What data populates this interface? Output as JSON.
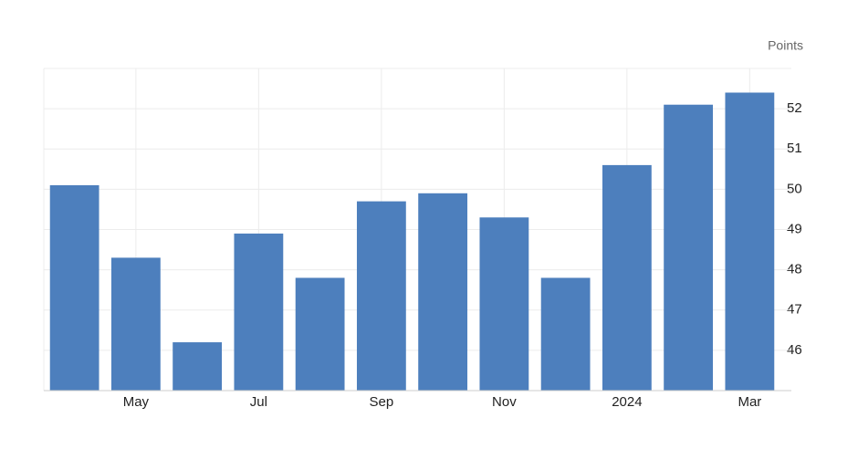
{
  "chart_data": {
    "type": "bar",
    "y_label": "Points",
    "categories": [
      null,
      "May",
      null,
      "Jul",
      null,
      "Sep",
      null,
      "Nov",
      null,
      "2024",
      null,
      "Mar"
    ],
    "values": [
      50.1,
      48.3,
      46.2,
      48.9,
      47.8,
      49.7,
      49.9,
      49.3,
      47.8,
      50.6,
      52.1,
      52.4
    ],
    "color": "#4d7fbd",
    "ylim": [
      45,
      53
    ],
    "yticks": [
      46,
      47,
      48,
      49,
      50,
      51,
      52
    ],
    "grid": true
  }
}
